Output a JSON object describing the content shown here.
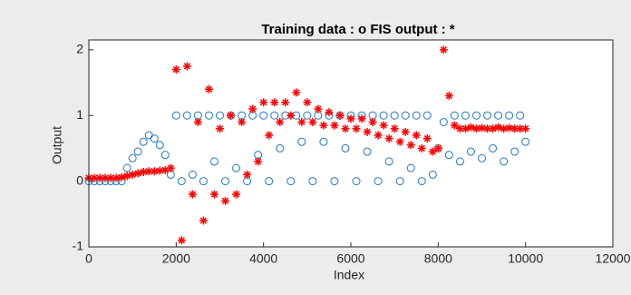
{
  "chart_data": {
    "type": "scatter",
    "title": "Training data : o   FIS output : *",
    "x_label": "Index",
    "y_label": "Output",
    "xlim": [
      0,
      12000
    ],
    "xticks": [
      0,
      2000,
      4000,
      6000,
      8000,
      10000,
      12000
    ],
    "ylim": [
      -1,
      2.15
    ],
    "yticks": [
      -1,
      0,
      1,
      2
    ],
    "x": [
      0,
      125,
      250,
      375,
      500,
      625,
      750,
      875,
      1000,
      1125,
      1250,
      1375,
      1500,
      1625,
      1750,
      1875,
      2000,
      2125,
      2250,
      2375,
      2500,
      2625,
      2750,
      2875,
      3000,
      3125,
      3250,
      3375,
      3500,
      3625,
      3750,
      3875,
      4000,
      4125,
      4250,
      4375,
      4500,
      4625,
      4750,
      4875,
      5000,
      5125,
      5250,
      5375,
      5500,
      5625,
      5750,
      5875,
      6000,
      6125,
      6250,
      6375,
      6500,
      6625,
      6750,
      6875,
      7000,
      7125,
      7250,
      7375,
      7500,
      7625,
      7750,
      7875,
      8000,
      8125,
      8250,
      8375,
      8500,
      8625,
      8750,
      8875,
      9000,
      9125,
      9250,
      9375,
      9500,
      9625,
      9750,
      9875,
      10000
    ],
    "series": [
      {
        "marker": "circle",
        "color": "#1f77c0",
        "values": [
          0,
          0,
          0,
          0,
          0,
          0,
          0,
          0.2,
          0.35,
          0.45,
          0.6,
          0.7,
          0.65,
          0.55,
          0.4,
          0.1,
          1,
          0,
          1,
          0.1,
          1,
          0,
          1,
          0.3,
          1,
          0,
          1,
          0.2,
          1,
          0,
          1,
          0.4,
          1,
          0,
          1,
          0.5,
          1,
          0,
          1,
          0.6,
          1,
          0,
          1,
          0.6,
          1,
          0,
          1,
          0.5,
          1,
          0,
          1,
          0.45,
          1,
          0,
          1,
          0.3,
          1,
          0,
          1,
          0.2,
          1,
          0,
          1,
          0.1,
          0.5,
          0.9,
          0.4,
          1,
          0.3,
          1,
          0.45,
          1,
          0.35,
          1,
          0.5,
          1,
          0.3,
          1,
          0.45,
          1,
          0.6
        ]
      },
      {
        "marker": "asterisk",
        "color": "#ff0000",
        "values": [
          0.05,
          0.05,
          0.05,
          0.05,
          0.05,
          0.05,
          0.06,
          0.08,
          0.1,
          0.12,
          0.14,
          0.15,
          0.15,
          0.16,
          0.17,
          0.2,
          1.7,
          -0.9,
          1.75,
          -0.2,
          0.9,
          -0.6,
          1.4,
          -0.2,
          0.8,
          -0.3,
          1.0,
          -0.2,
          0.9,
          0.1,
          1.1,
          0.3,
          1.2,
          0.7,
          1.2,
          0.9,
          1.2,
          1.0,
          1.35,
          0.9,
          1.2,
          0.9,
          1.1,
          0.85,
          1.05,
          0.85,
          1.0,
          0.8,
          0.95,
          0.8,
          0.95,
          0.75,
          0.9,
          0.7,
          0.85,
          0.65,
          0.8,
          0.6,
          0.75,
          0.55,
          0.7,
          0.5,
          0.65,
          0.45,
          0.5,
          2.0,
          1.3,
          0.85,
          0.8,
          0.8,
          0.82,
          0.8,
          0.81,
          0.8,
          0.8,
          0.82,
          0.8,
          0.81,
          0.8,
          0.8,
          0.8
        ]
      }
    ]
  }
}
